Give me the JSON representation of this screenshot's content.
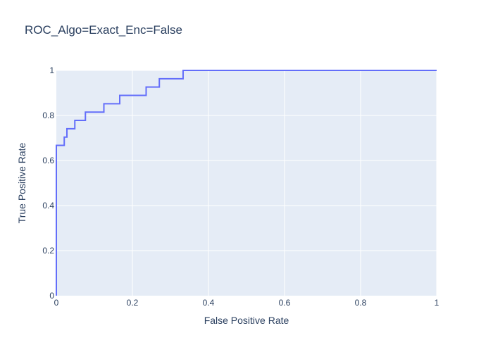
{
  "chart_data": {
    "type": "line",
    "title": "ROC_Algo=Exact_Enc=False",
    "xlabel": "False Positive Rate",
    "ylabel": "True Positive Rate",
    "xlim": [
      0,
      1
    ],
    "ylim": [
      0,
      1
    ],
    "x_ticks": [
      0,
      0.2,
      0.4,
      0.6,
      0.8,
      1
    ],
    "x_tick_labels": [
      "0",
      "0.2",
      "0.4",
      "0.6",
      "0.8",
      "1"
    ],
    "y_ticks": [
      0,
      0.2,
      0.4,
      0.6,
      0.8,
      1
    ],
    "y_tick_labels": [
      "0",
      "0.2",
      "0.4",
      "0.6",
      "0.8",
      "1"
    ],
    "grid": true,
    "legend": false,
    "line_shape": "step",
    "colors": {
      "plot_background": "#e5ecf6",
      "grid": "#ffffff",
      "line": "#636efa",
      "text": "#2a3f5f"
    },
    "series": [
      {
        "x": [
          0,
          0,
          0.0208,
          0.0208,
          0.0278,
          0.0278,
          0.0486,
          0.0486,
          0.0764,
          0.0764,
          0.125,
          0.125,
          0.1667,
          0.1667,
          0.2361,
          0.2361,
          0.2708,
          0.2708,
          0.3333,
          0.3333,
          1
        ],
        "y": [
          0,
          0.667,
          0.667,
          0.704,
          0.704,
          0.741,
          0.741,
          0.778,
          0.778,
          0.815,
          0.815,
          0.852,
          0.852,
          0.889,
          0.889,
          0.926,
          0.926,
          0.963,
          0.963,
          1,
          1
        ]
      }
    ]
  }
}
